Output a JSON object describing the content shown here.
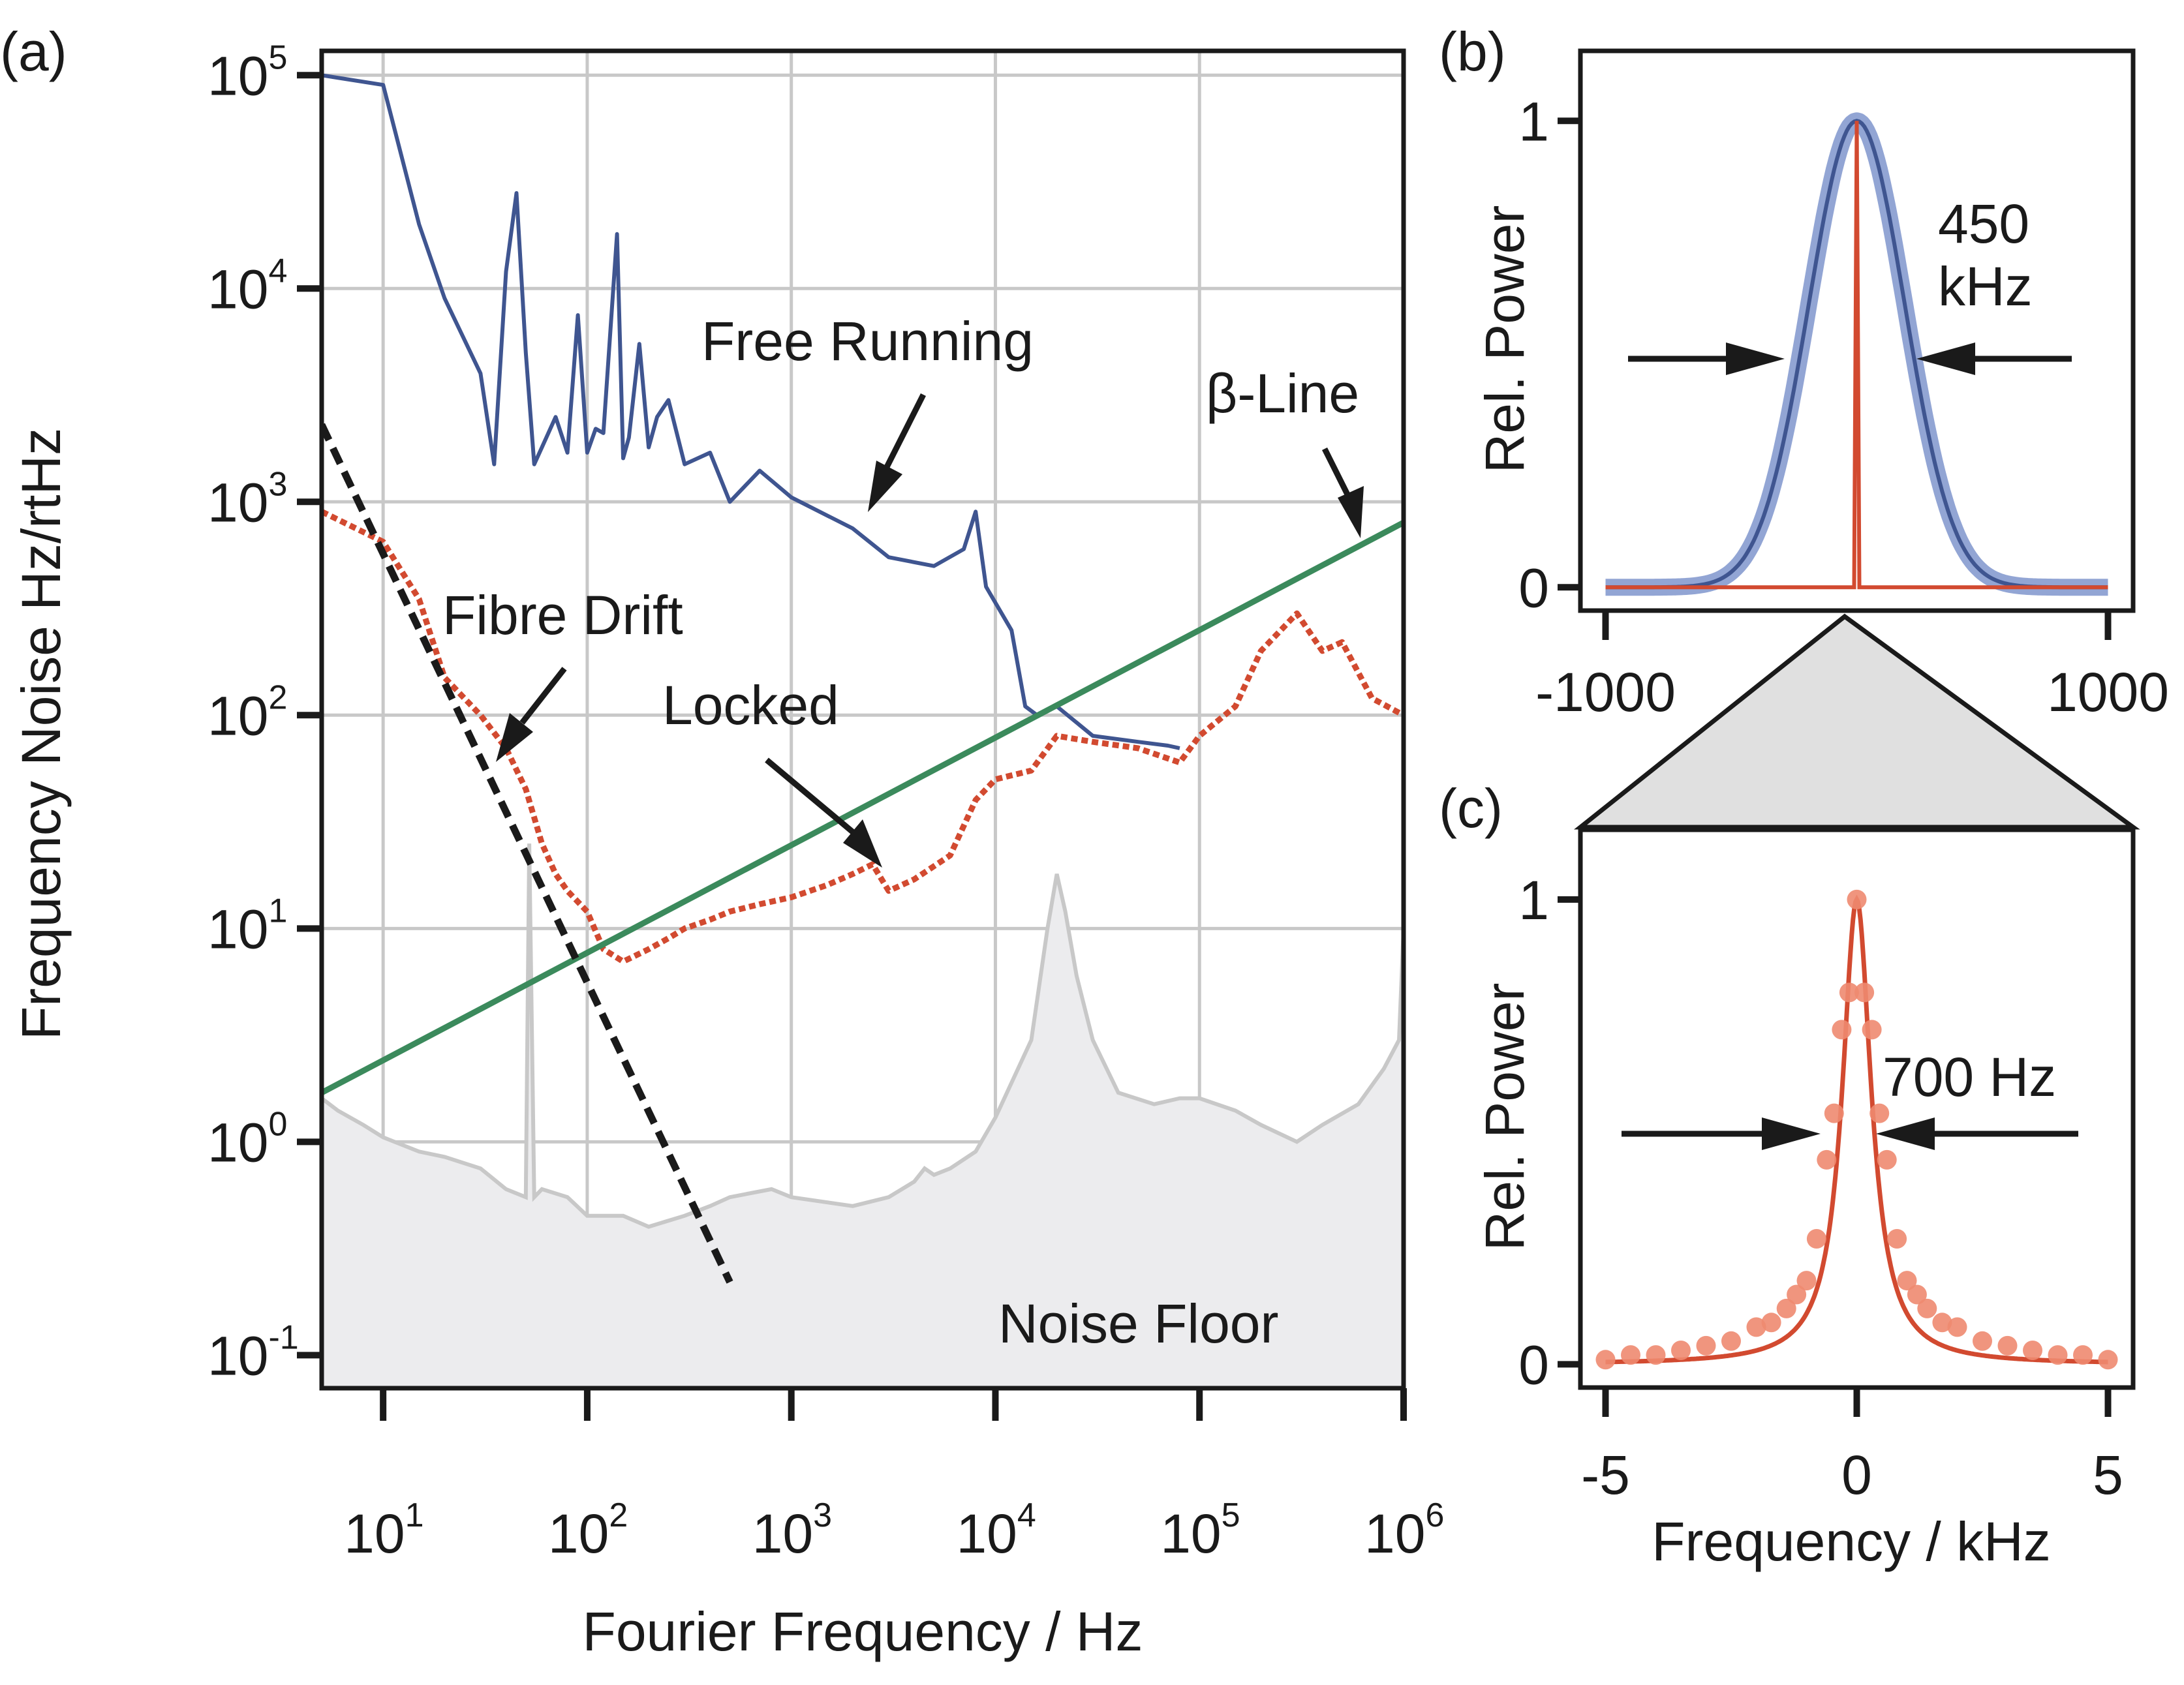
{
  "colors": {
    "free_running": "#3f5590",
    "locked": "#d24a30",
    "beta_line": "#3b8a5c",
    "noise_floor_line": "#c8c8c8",
    "noise_floor_fill": "#ececee",
    "fibre_drift": "#1a1a1a",
    "spectrum_fill": "#e0e0e0",
    "lorentz_points": "#ee8a70",
    "gauss_band": "#7f95cc"
  },
  "chart_data": [
    {
      "id": "a",
      "type": "line",
      "panel_label": "(a)",
      "xscale": "log",
      "yscale": "log",
      "xlabel": "Fourier Frequency / Hz",
      "ylabel": "Frequency Noise Hz/rtHz",
      "xlim": [
        5,
        1000000
      ],
      "ylim": [
        0.07,
        130000
      ],
      "xticks": [
        {
          "value": 10,
          "base": "10",
          "exp": "1"
        },
        {
          "value": 100,
          "base": "10",
          "exp": "2"
        },
        {
          "value": 1000,
          "base": "10",
          "exp": "3"
        },
        {
          "value": 10000,
          "base": "10",
          "exp": "4"
        },
        {
          "value": 100000,
          "base": "10",
          "exp": "5"
        },
        {
          "value": 1000000,
          "base": "10",
          "exp": "6"
        }
      ],
      "yticks": [
        {
          "value": 0.1,
          "base": "10",
          "exp": "-1"
        },
        {
          "value": 1,
          "base": "10",
          "exp": "0"
        },
        {
          "value": 10,
          "base": "10",
          "exp": "1"
        },
        {
          "value": 100,
          "base": "10",
          "exp": "2"
        },
        {
          "value": 1000,
          "base": "10",
          "exp": "3"
        },
        {
          "value": 10000,
          "base": "10",
          "exp": "4"
        },
        {
          "value": 100000,
          "base": "10",
          "exp": "5"
        }
      ],
      "grid": true,
      "series": [
        {
          "name": "Free Running",
          "style": "solid",
          "x": [
            5,
            10,
            15,
            20,
            30,
            35,
            40,
            45,
            50,
            55,
            60,
            70,
            80,
            90,
            100,
            110,
            120,
            140,
            150,
            160,
            180,
            200,
            220,
            250,
            300,
            400,
            500,
            700,
            1000,
            2000,
            3000,
            5000,
            7000,
            8000,
            9000,
            12000,
            14000,
            16000,
            20000,
            30000,
            50000,
            70000,
            80000
          ],
          "y": [
            100000,
            90000,
            20000,
            9000,
            4000,
            1500,
            12000,
            28000,
            5000,
            1500,
            1800,
            2500,
            1700,
            7500,
            1700,
            2200,
            2100,
            18000,
            1600,
            2000,
            5500,
            1800,
            2500,
            3000,
            1500,
            1700,
            1000,
            1400,
            1050,
            750,
            550,
            500,
            600,
            900,
            400,
            250,
            110,
            100,
            110,
            80,
            75,
            72,
            70
          ]
        },
        {
          "name": "Locked",
          "style": "dotted",
          "x": [
            5,
            10,
            15,
            20,
            25,
            30,
            40,
            50,
            60,
            70,
            80,
            100,
            120,
            150,
            200,
            250,
            300,
            400,
            500,
            700,
            1000,
            1500,
            2000,
            2500,
            3000,
            4000,
            6000,
            8000,
            10000,
            15000,
            20000,
            30000,
            50000,
            80000,
            100000,
            150000,
            200000,
            300000,
            400000,
            500000,
            700000,
            1000000
          ],
          "y": [
            900,
            650,
            350,
            150,
            120,
            100,
            70,
            45,
            25,
            18,
            15,
            12,
            8,
            7,
            8,
            9,
            10,
            11,
            12,
            13,
            14,
            16,
            18,
            20,
            15,
            17,
            22,
            40,
            50,
            55,
            80,
            75,
            70,
            60,
            80,
            110,
            200,
            300,
            200,
            220,
            120,
            100
          ]
        },
        {
          "name": "Noise Floor",
          "style": "filled",
          "x": [
            5,
            6,
            8,
            10,
            15,
            20,
            30,
            40,
            50,
            52,
            55,
            60,
            80,
            100,
            150,
            200,
            300,
            400,
            500,
            800,
            1000,
            2000,
            3000,
            4000,
            4500,
            5000,
            6000,
            8000,
            10000,
            15000,
            18000,
            20000,
            22000,
            25000,
            30000,
            40000,
            60000,
            80000,
            100000,
            150000,
            200000,
            300000,
            400000,
            600000,
            800000,
            950000,
            1000000
          ],
          "y": [
            1.6,
            1.4,
            1.2,
            1.05,
            0.9,
            0.85,
            0.75,
            0.6,
            0.55,
            25,
            0.55,
            0.6,
            0.55,
            0.45,
            0.45,
            0.4,
            0.45,
            0.5,
            0.55,
            0.6,
            0.55,
            0.5,
            0.55,
            0.65,
            0.75,
            0.7,
            0.75,
            0.9,
            1.3,
            3,
            10,
            18,
            12,
            6,
            3,
            1.7,
            1.5,
            1.6,
            1.6,
            1.4,
            1.2,
            1.0,
            1.2,
            1.5,
            2.2,
            3.0,
            10
          ]
        },
        {
          "name": "β-Line",
          "style": "solid",
          "x": [
            5,
            1000000
          ],
          "y": [
            1.7,
            800
          ]
        },
        {
          "name": "Fibre Drift",
          "style": "dashed",
          "x": [
            5,
            500
          ],
          "y": [
            2300,
            0.22
          ]
        }
      ],
      "annotations": [
        "Free Running",
        "Locked",
        "Fibre Drift",
        "β-Line",
        "Noise Floor"
      ]
    },
    {
      "id": "b",
      "type": "line",
      "panel_label": "(b)",
      "ylabel": "Rel. Power",
      "xlim": [
        -1100,
        1100
      ],
      "ylim": [
        -0.05,
        1.15
      ],
      "xticks": [
        {
          "value": -1000,
          "label": "-1000"
        },
        {
          "value": 1000,
          "label": "1000"
        }
      ],
      "yticks": [
        {
          "value": 0,
          "label": "0"
        },
        {
          "value": 1,
          "label": "1"
        }
      ],
      "series": [
        {
          "name": "Free running (Gaussian, FWHM 450 kHz)",
          "fwhm_khz": 450,
          "center": 0,
          "peak": 1
        },
        {
          "name": "Locked (narrow)",
          "center": 0,
          "peak": 1
        }
      ],
      "annotation": {
        "line1": "450",
        "line2": "kHz"
      }
    },
    {
      "id": "c",
      "type": "line",
      "panel_label": "(c)",
      "xlabel": "Frequency / kHz",
      "ylabel": "Rel. Power",
      "xlim": [
        -5.5,
        5.5
      ],
      "ylim": [
        -0.05,
        1.15
      ],
      "xticks": [
        {
          "value": -5,
          "label": "-5"
        },
        {
          "value": 0,
          "label": "0"
        },
        {
          "value": 5,
          "label": "5"
        }
      ],
      "yticks": [
        {
          "value": 0,
          "label": "0"
        },
        {
          "value": 1,
          "label": "1"
        }
      ],
      "series": [
        {
          "name": "Locked (Lorentzian fit, FWHM 700 Hz)",
          "fwhm_khz": 0.7,
          "center": 0,
          "peak": 1
        },
        {
          "name": "Locked (measured points)",
          "x": [
            -5.0,
            -4.5,
            -4.0,
            -3.5,
            -3.0,
            -2.5,
            -2.0,
            -1.7,
            -1.4,
            -1.2,
            -1.0,
            -0.8,
            -0.6,
            -0.45,
            -0.3,
            -0.15,
            0.0,
            0.15,
            0.3,
            0.45,
            0.6,
            0.8,
            1.0,
            1.2,
            1.4,
            1.7,
            2.0,
            2.5,
            3.0,
            3.5,
            4.0,
            4.5,
            5.0
          ],
          "y": [
            0.01,
            0.02,
            0.02,
            0.03,
            0.04,
            0.05,
            0.08,
            0.09,
            0.12,
            0.15,
            0.18,
            0.27,
            0.44,
            0.54,
            0.72,
            0.8,
            1.0,
            0.8,
            0.72,
            0.54,
            0.44,
            0.27,
            0.18,
            0.15,
            0.12,
            0.09,
            0.08,
            0.05,
            0.04,
            0.03,
            0.02,
            0.02,
            0.01
          ]
        }
      ],
      "annotation": "700 Hz"
    }
  ]
}
